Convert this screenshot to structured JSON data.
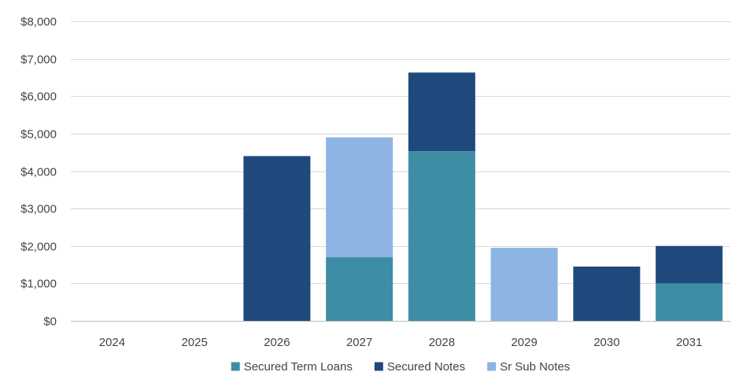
{
  "chart_data": {
    "type": "bar",
    "stacked": true,
    "categories": [
      "2024",
      "2025",
      "2026",
      "2027",
      "2028",
      "2029",
      "2030",
      "2031"
    ],
    "series": [
      {
        "name": "Secured Term Loans",
        "color": "#3d8ea5",
        "values": [
          0,
          0,
          0,
          1700,
          4530,
          0,
          0,
          1000
        ]
      },
      {
        "name": "Secured Notes",
        "color": "#1f497d",
        "values": [
          0,
          0,
          4400,
          0,
          2100,
          0,
          1450,
          1000
        ]
      },
      {
        "name": "Sr Sub Notes",
        "color": "#8eb4e3",
        "values": [
          0,
          0,
          0,
          3200,
          0,
          1950,
          0,
          0
        ]
      }
    ],
    "ylim": [
      0,
      8000
    ],
    "yticks": [
      0,
      1000,
      2000,
      3000,
      4000,
      5000,
      6000,
      7000,
      8000
    ],
    "ytick_labels": [
      "$0",
      "$1,000",
      "$2,000",
      "$3,000",
      "$4,000",
      "$5,000",
      "$6,000",
      "$7,000",
      "$8,000"
    ],
    "grid": true,
    "legend_position": "bottom",
    "title": "",
    "xlabel": "",
    "ylabel": ""
  }
}
